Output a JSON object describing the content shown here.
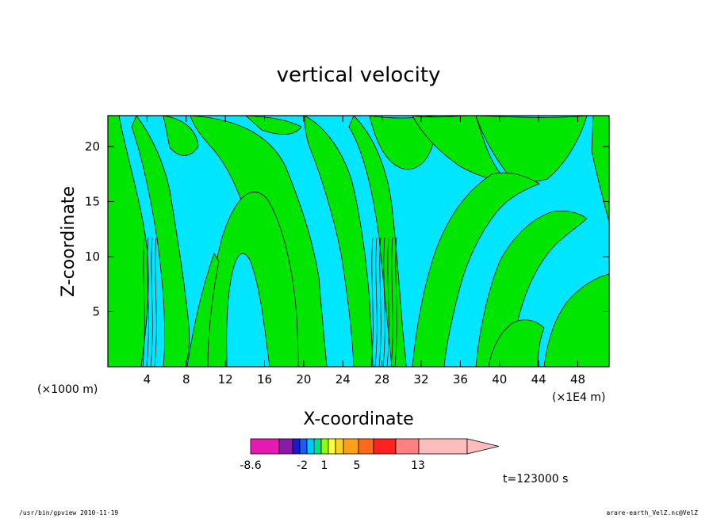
{
  "chart_data": {
    "type": "heatmap",
    "title": "vertical velocity",
    "xlabel": "X-coordinate",
    "ylabel": "Z-coordinate",
    "x_unit_left": "(×1000 m)",
    "x_unit_right": "(×1E4 m)",
    "xlim": [
      0,
      51.2
    ],
    "ylim": [
      0,
      22.8
    ],
    "x_ticks": [
      "4",
      "8",
      "12",
      "16",
      "20",
      "24",
      "28",
      "32",
      "36",
      "40",
      "44",
      "48"
    ],
    "y_ticks": [
      "5",
      "10",
      "15",
      "20"
    ],
    "colorbar": {
      "labels": [
        "-8.6",
        "-2",
        "1",
        "5",
        "13"
      ],
      "colors": [
        "#e619b3",
        "#8c1aa8",
        "#1a1acc",
        "#1a5aff",
        "#00c8ff",
        "#00e08c",
        "#8cff00",
        "#ffff33",
        "#ffd21a",
        "#ffa01a",
        "#ff6a1a",
        "#ff2020",
        "#ff8080",
        "#ffbcbc"
      ]
    },
    "contour_colors": {
      "negative": "#00e6ff",
      "positive": "#00e600"
    },
    "time_label": "t=123000 s"
  },
  "footer": {
    "left": "/usr/bin/gpview   2010-11-19",
    "right": "arare-earth_VelZ.nc@VelZ"
  }
}
